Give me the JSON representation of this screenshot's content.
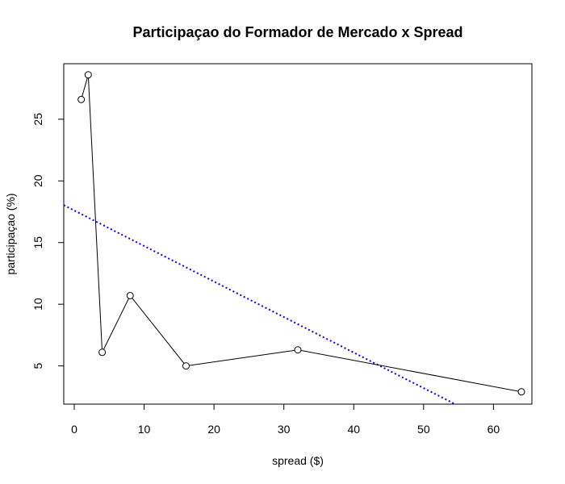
{
  "chart_data": {
    "type": "line",
    "title": "Participaçao do Formador de Mercado x Spread",
    "xlabel": "spread ($)",
    "ylabel": "participaçao (%)",
    "xlim": [
      -1.5,
      65.5
    ],
    "ylim": [
      1.9,
      29.5
    ],
    "xticks": [
      0,
      10,
      20,
      30,
      40,
      50,
      60
    ],
    "yticks": [
      5,
      10,
      15,
      20,
      25
    ],
    "grid": false,
    "series": [
      {
        "style": "line-with-open-circles",
        "color": "#000000",
        "x": [
          1,
          2,
          4,
          8,
          16,
          32,
          64
        ],
        "y": [
          26.6,
          28.6,
          6.1,
          10.7,
          5.0,
          6.3,
          2.9
        ]
      }
    ],
    "trendline": {
      "style": "dotted",
      "color": "#0000ff",
      "intercept": 17.6,
      "slope": -0.288
    }
  }
}
